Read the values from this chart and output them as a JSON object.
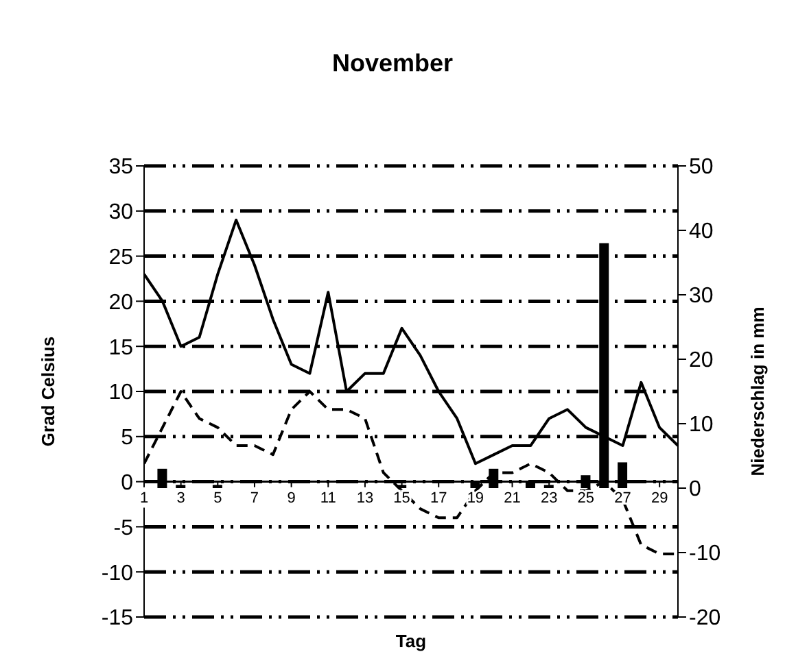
{
  "chart_data": {
    "type": "line",
    "title": "November",
    "xlabel": "Tag",
    "ylabel": "Grad Celsius",
    "y2label": "Niederschlag in mm",
    "x": [
      1,
      2,
      3,
      4,
      5,
      6,
      7,
      8,
      9,
      10,
      11,
      12,
      13,
      14,
      15,
      16,
      17,
      18,
      19,
      20,
      21,
      22,
      23,
      24,
      25,
      26,
      27,
      28,
      29,
      30
    ],
    "xlim": [
      1,
      30
    ],
    "xticks": [
      1,
      3,
      5,
      7,
      9,
      11,
      13,
      15,
      17,
      19,
      21,
      23,
      25,
      27,
      29
    ],
    "ylim": [
      -15,
      35
    ],
    "yticks": [
      -15,
      -10,
      -5,
      0,
      5,
      10,
      15,
      20,
      25,
      30,
      35
    ],
    "y2lim": [
      -20,
      50
    ],
    "y2ticks": [
      -20,
      -10,
      0,
      10,
      20,
      30,
      40,
      50
    ],
    "grid": "y",
    "marker": "none",
    "series": [
      {
        "color": "#000000",
        "line_style": "solid",
        "values": [
          23,
          20,
          15,
          16,
          23,
          29,
          24,
          18,
          13,
          12,
          21,
          10,
          12,
          12,
          17,
          14,
          10,
          7,
          2,
          3,
          4,
          4,
          7,
          8,
          6,
          5,
          4,
          11,
          6,
          4
        ]
      },
      {
        "color": "#000000",
        "line_style": "dashed",
        "values": [
          2,
          6,
          10,
          7,
          6,
          4,
          4,
          3,
          8,
          10,
          8,
          8,
          7,
          1,
          -1,
          -3,
          -4,
          -4,
          -1,
          1,
          1,
          2,
          1,
          -1,
          -1,
          0,
          -2,
          -7,
          -8,
          -8
        ]
      },
      {
        "type": "bar",
        "axis": "y2",
        "color": "#000000",
        "values": [
          null,
          3,
          0.5,
          null,
          0.5,
          null,
          null,
          null,
          null,
          null,
          null,
          null,
          null,
          null,
          0.5,
          null,
          null,
          null,
          1,
          3,
          null,
          1,
          0.5,
          null,
          2,
          38,
          4,
          null,
          null,
          null
        ]
      }
    ]
  }
}
